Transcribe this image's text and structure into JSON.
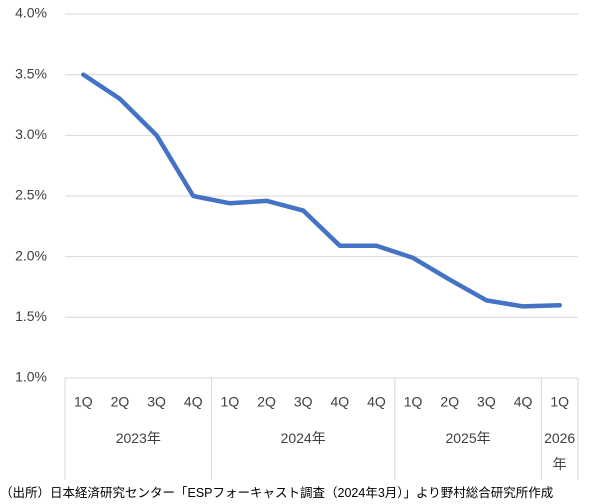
{
  "chart_data": {
    "type": "line",
    "groups": [
      {
        "label": "2023年",
        "categories": [
          "1Q",
          "2Q",
          "3Q",
          "4Q"
        ]
      },
      {
        "label": "2024年",
        "categories": [
          "1Q",
          "2Q",
          "3Q",
          "4Q",
          "4Q"
        ]
      },
      {
        "label": "2025年",
        "categories": [
          "1Q",
          "2Q",
          "3Q",
          "4Q"
        ]
      },
      {
        "label": "2026年",
        "categories": [
          "1Q"
        ]
      }
    ],
    "series": [
      {
        "color": "#4472c4",
        "values": [
          3.5,
          3.3,
          3.0,
          2.5,
          2.44,
          2.46,
          2.38,
          2.09,
          2.09,
          1.99,
          1.81,
          1.64,
          1.59,
          1.6
        ]
      }
    ],
    "ylim": [
      1.0,
      4.0
    ],
    "yticks": [
      {
        "value": 1.0,
        "label": "1.0%"
      },
      {
        "value": 1.5,
        "label": "1.5%"
      },
      {
        "value": 2.0,
        "label": "2.0%"
      },
      {
        "value": 2.5,
        "label": "2.5%"
      },
      {
        "value": 3.0,
        "label": "3.0%"
      },
      {
        "value": 3.5,
        "label": "3.5%"
      },
      {
        "value": 4.0,
        "label": "4.0%"
      }
    ],
    "grid": true,
    "source": "（出所）日本経済研究センター「ESPフォーキャスト調査（2024年3月）」より野村総合研究所作成"
  }
}
